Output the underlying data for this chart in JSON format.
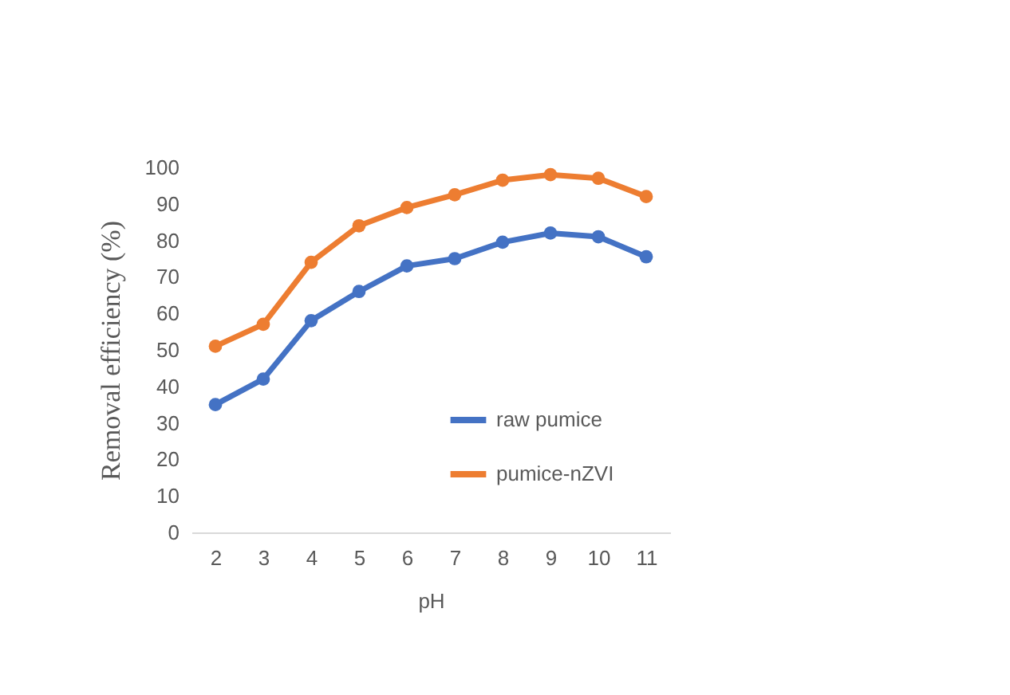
{
  "chart_data": {
    "type": "line",
    "xlabel": "pH",
    "ylabel": "Removal efficiency (%)",
    "categories": [
      "2",
      "3",
      "4",
      "5",
      "6",
      "7",
      "8",
      "9",
      "10",
      "11"
    ],
    "series": [
      {
        "name": "raw pumice",
        "color": "#4472c4",
        "values": [
          35,
          42,
          58,
          66,
          73,
          75,
          79.5,
          82,
          81,
          75.5
        ]
      },
      {
        "name": "pumice-nZVI",
        "color": "#ed7d31",
        "values": [
          51,
          57,
          74,
          84,
          89,
          92.5,
          96.5,
          98,
          97,
          92
        ]
      }
    ],
    "ylim": [
      0,
      100
    ],
    "yticks": [
      0,
      10,
      20,
      30,
      40,
      50,
      60,
      70,
      80,
      90,
      100
    ],
    "grid": false,
    "legend": "bottom right",
    "marker": "circle",
    "line_style": "solid"
  }
}
